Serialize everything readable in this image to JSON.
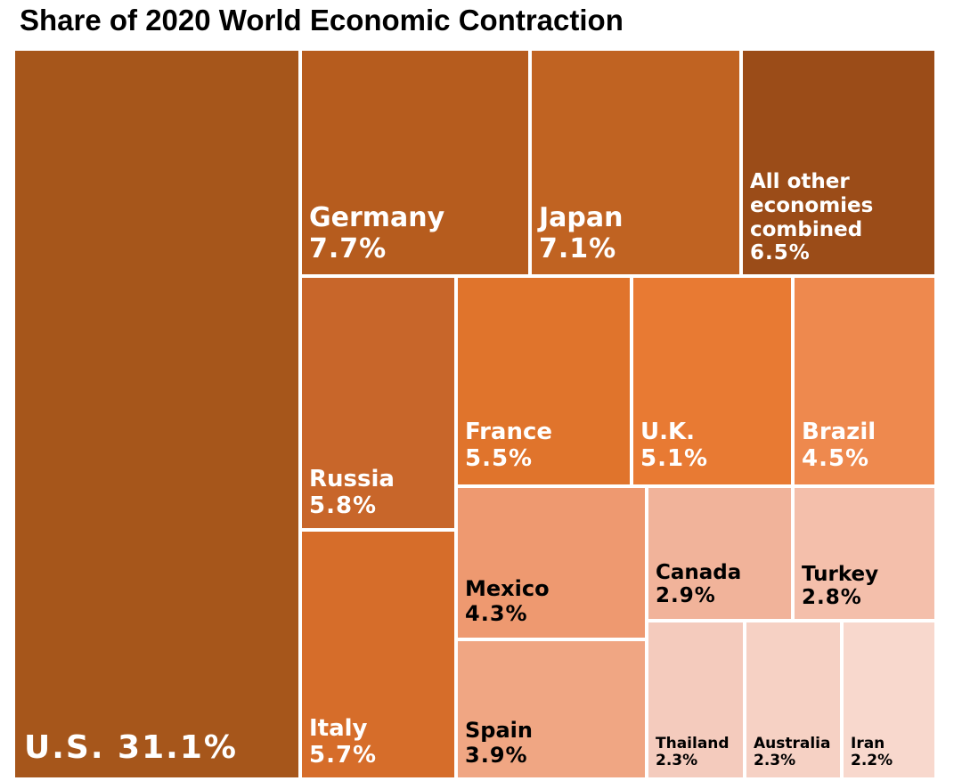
{
  "title": "Share of 2020 World Economic Contraction",
  "chart_data": {
    "type": "treemap",
    "title": "Share of 2020 World Economic Contraction",
    "unit": "%",
    "items": [
      {
        "name": "U.S.",
        "value": 31.1,
        "label": "31.1%",
        "color": "#a6561b",
        "text_color": "#ffffff"
      },
      {
        "name": "Germany",
        "value": 7.7,
        "label": "7.7%",
        "color": "#b65c1e",
        "text_color": "#ffffff"
      },
      {
        "name": "Japan",
        "value": 7.1,
        "label": "7.1%",
        "color": "#c06322",
        "text_color": "#ffffff"
      },
      {
        "name": "All other economies combined",
        "value": 6.5,
        "label": "6.5%",
        "color": "#9b4c18",
        "text_color": "#ffffff"
      },
      {
        "name": "Russia",
        "value": 5.8,
        "label": "5.8%",
        "color": "#c8662a",
        "text_color": "#ffffff"
      },
      {
        "name": "Italy",
        "value": 5.7,
        "label": "5.7%",
        "color": "#d66d2a",
        "text_color": "#ffffff"
      },
      {
        "name": "France",
        "value": 5.5,
        "label": "5.5%",
        "color": "#e0742c",
        "text_color": "#ffffff"
      },
      {
        "name": "U.K.",
        "value": 5.1,
        "label": "5.1%",
        "color": "#e87a33",
        "text_color": "#ffffff"
      },
      {
        "name": "Brazil",
        "value": 4.5,
        "label": "4.5%",
        "color": "#ee894e",
        "text_color": "#ffffff"
      },
      {
        "name": "Mexico",
        "value": 4.3,
        "label": "4.3%",
        "color": "#ee9970",
        "text_color": "#000000"
      },
      {
        "name": "Spain",
        "value": 3.9,
        "label": "3.9%",
        "color": "#f0a683",
        "text_color": "#000000"
      },
      {
        "name": "Canada",
        "value": 2.9,
        "label": "2.9%",
        "color": "#f1b39a",
        "text_color": "#000000"
      },
      {
        "name": "Turkey",
        "value": 2.8,
        "label": "2.8%",
        "color": "#f4bfab",
        "text_color": "#000000"
      },
      {
        "name": "Thailand",
        "value": 2.3,
        "label": "2.3%",
        "color": "#f4cbbd",
        "text_color": "#000000"
      },
      {
        "name": "Australia",
        "value": 2.3,
        "label": "2.3%",
        "color": "#f6d1c4",
        "text_color": "#000000"
      },
      {
        "name": "Iran",
        "value": 2.2,
        "label": "2.2%",
        "color": "#f8d8cd",
        "text_color": "#000000"
      }
    ]
  }
}
